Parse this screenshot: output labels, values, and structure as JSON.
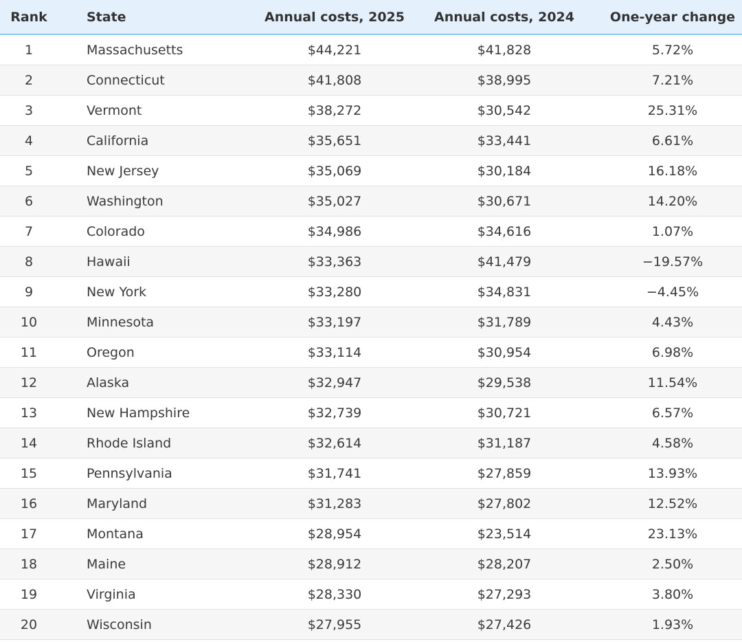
{
  "table": {
    "header": [
      "Rank",
      "State",
      "Annual costs, 2025",
      "Annual costs, 2024",
      "One-year change"
    ],
    "rows": [
      [
        "1",
        "Massachusetts",
        "$44,221",
        "$41,828",
        "5.72%"
      ],
      [
        "2",
        "Connecticut",
        "$41,808",
        "$38,995",
        "7.21%"
      ],
      [
        "3",
        "Vermont",
        "$38,272",
        "$30,542",
        "25.31%"
      ],
      [
        "4",
        "California",
        "$35,651",
        "$33,441",
        "6.61%"
      ],
      [
        "5",
        "New Jersey",
        "$35,069",
        "$30,184",
        "16.18%"
      ],
      [
        "6",
        "Washington",
        "$35,027",
        "$30,671",
        "14.20%"
      ],
      [
        "7",
        "Colorado",
        "$34,986",
        "$34,616",
        "1.07%"
      ],
      [
        "8",
        "Hawaii",
        "$33,363",
        "$41,479",
        "−19.57%"
      ],
      [
        "9",
        "New York",
        "$33,280",
        "$34,831",
        "−4.45%"
      ],
      [
        "10",
        "Minnesota",
        "$33,197",
        "$31,789",
        "4.43%"
      ],
      [
        "11",
        "Oregon",
        "$33,114",
        "$30,954",
        "6.98%"
      ],
      [
        "12",
        "Alaska",
        "$32,947",
        "$29,538",
        "11.54%"
      ],
      [
        "13",
        "New Hampshire",
        "$32,739",
        "$30,721",
        "6.57%"
      ],
      [
        "14",
        "Rhode Island",
        "$32,614",
        "$31,187",
        "4.58%"
      ],
      [
        "15",
        "Pennsylvania",
        "$31,741",
        "$27,859",
        "13.93%"
      ],
      [
        "16",
        "Maryland",
        "$31,283",
        "$27,802",
        "12.52%"
      ],
      [
        "17",
        "Montana",
        "$28,954",
        "$23,514",
        "23.13%"
      ],
      [
        "18",
        "Maine",
        "$28,912",
        "$28,207",
        "2.50%"
      ],
      [
        "19",
        "Virginia",
        "$28,330",
        "$27,293",
        "3.80%"
      ],
      [
        "20",
        "Wisconsin",
        "$27,955",
        "$27,426",
        "1.93%"
      ]
    ]
  }
}
